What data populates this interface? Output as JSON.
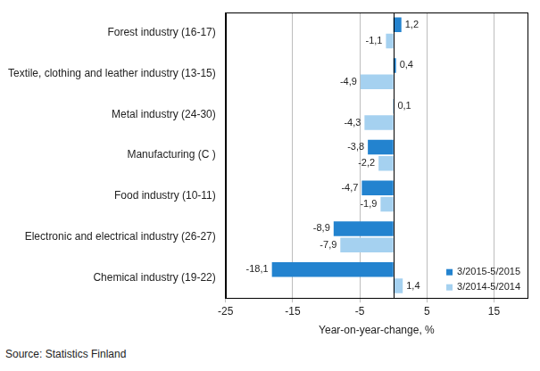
{
  "chart_data": {
    "type": "bar",
    "orientation": "horizontal",
    "categories": [
      "Forest industry (16-17)",
      "Textile, clothing and leather industry (13-15)",
      "Metal industry (24-30)",
      "Manufacturing (C )",
      "Food industry (10-11)",
      "Electronic and electrical industry (26-27)",
      "Chemical industry (19-22)"
    ],
    "series": [
      {
        "name": "3/2015-5/2015",
        "color": "#2383cf",
        "values": [
          1.2,
          0.4,
          0.1,
          -3.8,
          -4.7,
          -8.9,
          -18.1
        ],
        "value_labels": [
          "1,2",
          "0,4",
          "0,1",
          "-3,8",
          "-4,7",
          "-8,9",
          "-18,1"
        ]
      },
      {
        "name": "3/2014-5/2014",
        "color": "#a5d1f0",
        "values": [
          -1.1,
          -4.9,
          -4.3,
          -2.2,
          -1.9,
          -7.9,
          1.4
        ],
        "value_labels": [
          "-1,1",
          "-4,9",
          "-4,3",
          "-2,2",
          "-1,9",
          "-7,9",
          "1,4"
        ]
      }
    ],
    "x_label": "Year-on-year-change, %",
    "xlim": [
      -25,
      20
    ],
    "xticks": [
      -25,
      -15,
      -5,
      5,
      15
    ],
    "grid": true,
    "legend": "lower right",
    "data_labels": true,
    "source": "Source: Statistics Finland"
  }
}
